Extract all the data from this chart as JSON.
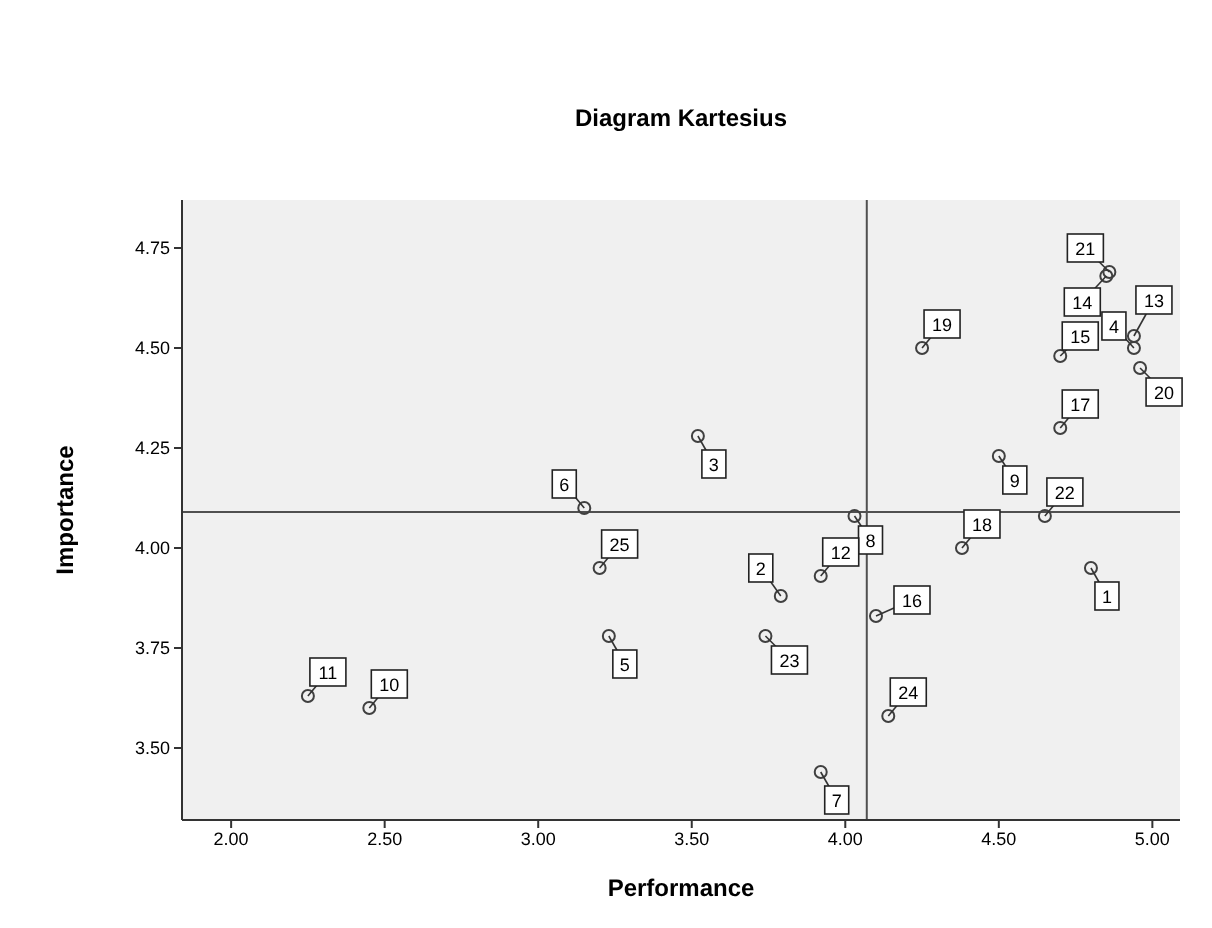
{
  "chart_data": {
    "type": "scatter",
    "title": "Diagram Kartesius",
    "xlabel": "Performance",
    "ylabel": "Importance",
    "x": [
      4.8,
      3.79,
      3.52,
      4.94,
      3.23,
      3.15,
      3.92,
      4.03,
      4.5,
      2.45,
      2.25,
      3.92,
      4.94,
      4.85,
      4.7,
      4.1,
      4.7,
      4.38,
      4.25,
      4.96,
      4.86,
      4.65,
      3.74,
      4.14,
      3.2
    ],
    "series": [
      {
        "color": "#404040",
        "values": [
          3.95,
          3.88,
          4.28,
          4.5,
          3.78,
          4.1,
          3.44,
          4.08,
          4.23,
          3.6,
          3.63,
          3.93,
          4.53,
          4.68,
          4.48,
          3.83,
          4.3,
          4.0,
          4.5,
          4.45,
          4.69,
          4.08,
          3.78,
          3.58,
          3.95
        ]
      }
    ],
    "xlim": [
      1.84,
      5.09
    ],
    "ylim": [
      3.32,
      4.87
    ],
    "xticks": [
      {
        "value": 2,
        "label": "2.00"
      },
      {
        "value": 2.5,
        "label": "2.50"
      },
      {
        "value": 3,
        "label": "3.00"
      },
      {
        "value": 3.5,
        "label": "3.50"
      },
      {
        "value": 4,
        "label": "4.00"
      },
      {
        "value": 4.5,
        "label": "4.50"
      },
      {
        "value": 5,
        "label": "5.00"
      }
    ],
    "yticks": [
      {
        "value": 3.5,
        "label": "3.50"
      },
      {
        "value": 3.75,
        "label": "3.75"
      },
      {
        "value": 4,
        "label": "4.00"
      },
      {
        "value": 4.25,
        "label": "4.25"
      },
      {
        "value": 4.5,
        "label": "4.50"
      },
      {
        "value": 4.75,
        "label": "4.75"
      }
    ],
    "ref_lines": [
      {
        "axis": "x",
        "value": 4.07,
        "color": "#505050"
      },
      {
        "axis": "y",
        "value": 4.09,
        "color": "#505050"
      }
    ],
    "annotations": [
      {
        "text": "1",
        "x": 4.8,
        "y": 3.95
      },
      {
        "text": "2",
        "x": 3.79,
        "y": 3.88
      },
      {
        "text": "3",
        "x": 3.52,
        "y": 4.28
      },
      {
        "text": "4",
        "x": 4.94,
        "y": 4.5
      },
      {
        "text": "5",
        "x": 3.23,
        "y": 3.78
      },
      {
        "text": "6",
        "x": 3.15,
        "y": 4.1
      },
      {
        "text": "7",
        "x": 3.92,
        "y": 3.44
      },
      {
        "text": "8",
        "x": 4.03,
        "y": 4.08
      },
      {
        "text": "9",
        "x": 4.5,
        "y": 4.23
      },
      {
        "text": "10",
        "x": 2.45,
        "y": 3.6
      },
      {
        "text": "11",
        "x": 2.25,
        "y": 3.63
      },
      {
        "text": "12",
        "x": 3.92,
        "y": 3.93
      },
      {
        "text": "13",
        "x": 4.94,
        "y": 4.53
      },
      {
        "text": "14",
        "x": 4.85,
        "y": 4.68
      },
      {
        "text": "15",
        "x": 4.7,
        "y": 4.48
      },
      {
        "text": "16",
        "x": 4.1,
        "y": 3.83
      },
      {
        "text": "17",
        "x": 4.7,
        "y": 4.3
      },
      {
        "text": "18",
        "x": 4.38,
        "y": 4.0
      },
      {
        "text": "19",
        "x": 4.25,
        "y": 4.5
      },
      {
        "text": "20",
        "x": 4.96,
        "y": 4.45
      },
      {
        "text": "21",
        "x": 4.86,
        "y": 4.69
      },
      {
        "text": "22",
        "x": 4.65,
        "y": 4.08
      },
      {
        "text": "23",
        "x": 3.74,
        "y": 3.78
      },
      {
        "text": "24",
        "x": 4.14,
        "y": 3.58
      },
      {
        "text": "25",
        "x": 3.2,
        "y": 3.95
      }
    ],
    "marker": "circle"
  }
}
